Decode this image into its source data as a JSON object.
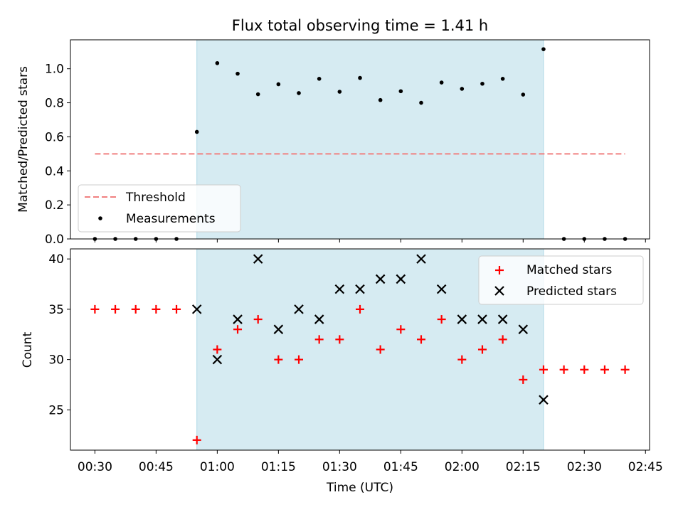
{
  "chart_data": [
    {
      "type": "scatter",
      "title": "Flux total observing time = 1.41 h",
      "xlabel": "",
      "ylabel": "Matched/Predicted stars",
      "ylim": [
        0,
        1.17
      ],
      "yticks": [
        0.0,
        0.2,
        0.4,
        0.6,
        0.8,
        1.0
      ],
      "ytick_labels": [
        "0.0",
        "0.2",
        "0.4",
        "0.6",
        "0.8",
        "1.0"
      ],
      "shaded_region": {
        "start": "00:55",
        "end": "02:20",
        "color": "#add8e6"
      },
      "threshold": {
        "name": "Threshold",
        "value": 0.5,
        "from": "00:30",
        "to": "02:40",
        "color": "#f08080",
        "style": "dashed"
      },
      "series": [
        {
          "name": "Measurements",
          "marker": "dot",
          "color": "#000000",
          "x": [
            "00:30",
            "00:35",
            "00:40",
            "00:45",
            "00:50",
            "00:55",
            "01:00",
            "01:05",
            "01:10",
            "01:15",
            "01:20",
            "01:25",
            "01:30",
            "01:35",
            "01:40",
            "01:45",
            "01:50",
            "01:55",
            "02:00",
            "02:05",
            "02:10",
            "02:15",
            "02:20",
            "02:25",
            "02:30",
            "02:35",
            "02:40"
          ],
          "y": [
            0,
            0,
            0,
            0,
            0,
            0.629,
            1.033,
            0.971,
            0.85,
            0.909,
            0.857,
            0.941,
            0.865,
            0.946,
            0.816,
            0.868,
            0.8,
            0.919,
            0.882,
            0.912,
            0.941,
            0.848,
            1.115,
            0,
            0,
            0,
            0
          ]
        }
      ],
      "legend": {
        "position": "lower-left",
        "entries": [
          "Threshold",
          "Measurements"
        ]
      }
    },
    {
      "type": "scatter",
      "title": "",
      "xlabel": "Time (UTC)",
      "ylabel": "Count",
      "ylim": [
        21,
        41
      ],
      "yticks": [
        25,
        30,
        35,
        40
      ],
      "ytick_labels": [
        "25",
        "30",
        "35",
        "40"
      ],
      "xlim": [
        "00:24",
        "02:46"
      ],
      "xticks": [
        "00:30",
        "00:45",
        "01:00",
        "01:15",
        "01:30",
        "01:45",
        "02:00",
        "02:15",
        "02:30",
        "02:45"
      ],
      "xtick_labels": [
        "00:30",
        "00:45",
        "01:00",
        "01:15",
        "01:30",
        "01:45",
        "02:00",
        "02:15",
        "02:30",
        "02:45"
      ],
      "shaded_region": {
        "start": "00:55",
        "end": "02:20",
        "color": "#add8e6"
      },
      "series": [
        {
          "name": "Matched stars",
          "marker": "plus",
          "color": "#ff0000",
          "x": [
            "00:30",
            "00:35",
            "00:40",
            "00:45",
            "00:50",
            "00:55",
            "01:00",
            "01:05",
            "01:10",
            "01:15",
            "01:20",
            "01:25",
            "01:30",
            "01:35",
            "01:40",
            "01:45",
            "01:50",
            "01:55",
            "02:00",
            "02:05",
            "02:10",
            "02:15",
            "02:20",
            "02:25",
            "02:30",
            "02:35",
            "02:40"
          ],
          "y": [
            35,
            35,
            35,
            35,
            35,
            22,
            31,
            33,
            34,
            30,
            30,
            32,
            32,
            35,
            31,
            33,
            32,
            34,
            30,
            31,
            32,
            28,
            29,
            29,
            29,
            29,
            29
          ]
        },
        {
          "name": "Predicted stars",
          "marker": "x",
          "color": "#000000",
          "x": [
            "00:55",
            "01:00",
            "01:05",
            "01:10",
            "01:15",
            "01:20",
            "01:25",
            "01:30",
            "01:35",
            "01:40",
            "01:45",
            "01:50",
            "01:55",
            "02:00",
            "02:05",
            "02:10",
            "02:15",
            "02:20"
          ],
          "y": [
            35,
            30,
            34,
            40,
            33,
            35,
            34,
            37,
            37,
            38,
            38,
            40,
            37,
            34,
            34,
            34,
            33,
            26
          ]
        }
      ],
      "legend": {
        "position": "upper-right",
        "entries": [
          "Matched stars",
          "Predicted stars"
        ]
      }
    }
  ]
}
